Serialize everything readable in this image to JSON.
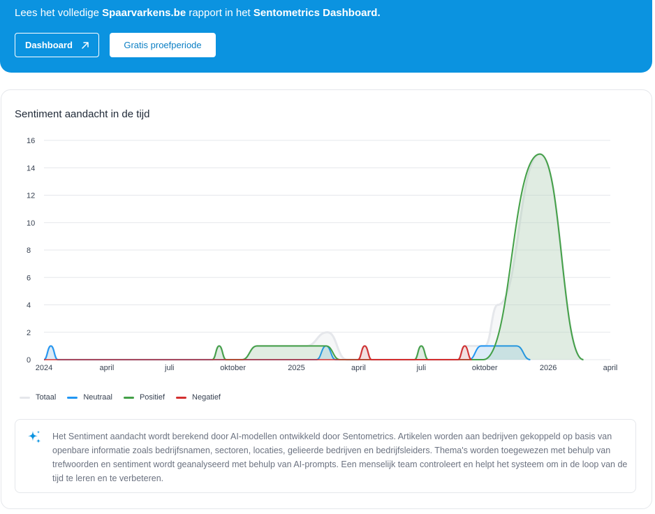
{
  "banner": {
    "text_before": "Lees het volledige ",
    "site": "Spaarvarkens.be",
    "text_middle": " rapport in het ",
    "product": "Sentometrics Dashboard.",
    "dashboard_button": "Dashboard",
    "trial_button": "Gratis proefperiode",
    "color": "#0b93e0"
  },
  "card": {
    "title": "Sentiment aandacht in de tijd"
  },
  "info": {
    "text": "Het Sentiment aandacht wordt berekend door AI-modellen ontwikkeld door Sentometrics. Artikelen worden aan bedrijven gekoppeld op basis van openbare informatie zoals bedrijfsnamen, sectoren, locaties, gelieerde bedrijven en bedrijfsleiders. Thema's worden toegewezen met behulp van trefwoorden en sentiment wordt geanalyseerd met behulp van AI-prompts. Een menselijk team controleert en helpt het systeem om in de loop van de tijd te leren en te verbeteren."
  },
  "chart_data": {
    "type": "area",
    "title": "",
    "xlabel": "",
    "ylabel": "",
    "ylim": [
      0,
      16
    ],
    "yticks": [
      0,
      2,
      4,
      6,
      8,
      10,
      12,
      14,
      16
    ],
    "xlim": [
      "2024-01-01",
      "2026-04-01"
    ],
    "xticks": [
      {
        "date": "2024-01-01",
        "label": "2024"
      },
      {
        "date": "2024-04-01",
        "label": "april"
      },
      {
        "date": "2024-07-01",
        "label": "juli"
      },
      {
        "date": "2024-10-01",
        "label": "oktober"
      },
      {
        "date": "2025-01-01",
        "label": "2025"
      },
      {
        "date": "2025-04-01",
        "label": "april"
      },
      {
        "date": "2025-07-01",
        "label": "juli"
      },
      {
        "date": "2025-10-01",
        "label": "oktober"
      },
      {
        "date": "2026-01-01",
        "label": "2026"
      },
      {
        "date": "2026-04-01",
        "label": "april"
      }
    ],
    "grid": true,
    "legend_position": "bottom-left",
    "series": [
      {
        "name": "Totaal",
        "color": "#e5e7eb",
        "points": [
          [
            "2024-01-01",
            0
          ],
          [
            "2024-01-11",
            1
          ],
          [
            "2024-01-21",
            0
          ],
          [
            "2024-09-01",
            0
          ],
          [
            "2024-09-11",
            1
          ],
          [
            "2024-09-21",
            0
          ],
          [
            "2024-10-14",
            0
          ],
          [
            "2024-11-05",
            1
          ],
          [
            "2025-01-15",
            1
          ],
          [
            "2025-02-15",
            2
          ],
          [
            "2025-03-15",
            0
          ],
          [
            "2025-03-31",
            0
          ],
          [
            "2025-04-10",
            1
          ],
          [
            "2025-04-20",
            0
          ],
          [
            "2025-06-21",
            0
          ],
          [
            "2025-07-01",
            1
          ],
          [
            "2025-07-11",
            0
          ],
          [
            "2025-08-23",
            0
          ],
          [
            "2025-09-02",
            1
          ],
          [
            "2025-09-10",
            1
          ],
          [
            "2025-10-01",
            1
          ],
          [
            "2025-10-20",
            4
          ],
          [
            "2025-12-20",
            15
          ],
          [
            "2026-02-21",
            0
          ]
        ]
      },
      {
        "name": "Neutraal",
        "color": "#2196f3",
        "points": [
          [
            "2024-01-01",
            0
          ],
          [
            "2024-01-11",
            1
          ],
          [
            "2024-01-21",
            0
          ],
          [
            "2025-01-20",
            0
          ],
          [
            "2025-01-30",
            0
          ],
          [
            "2025-02-13",
            1
          ],
          [
            "2025-02-27",
            0
          ],
          [
            "2025-09-08",
            0
          ],
          [
            "2025-09-26",
            1
          ],
          [
            "2025-10-15",
            1
          ],
          [
            "2025-11-16",
            1
          ],
          [
            "2025-12-06",
            0
          ]
        ]
      },
      {
        "name": "Positief",
        "color": "#43a047",
        "points": [
          [
            "2024-09-01",
            0
          ],
          [
            "2024-09-11",
            1
          ],
          [
            "2024-09-21",
            0
          ],
          [
            "2024-10-14",
            0
          ],
          [
            "2024-11-05",
            1
          ],
          [
            "2025-02-13",
            1
          ],
          [
            "2025-03-05",
            0
          ],
          [
            "2025-06-21",
            0
          ],
          [
            "2025-07-01",
            1
          ],
          [
            "2025-07-11",
            0
          ],
          [
            "2025-09-29",
            0
          ],
          [
            "2025-12-20",
            15
          ],
          [
            "2026-02-21",
            0
          ]
        ]
      },
      {
        "name": "Negatief",
        "color": "#d32f2f",
        "points": [
          [
            "2025-03-31",
            0
          ],
          [
            "2025-04-10",
            1
          ],
          [
            "2025-04-20",
            0
          ],
          [
            "2025-08-23",
            0
          ],
          [
            "2025-09-02",
            1
          ],
          [
            "2025-09-12",
            0
          ]
        ]
      }
    ]
  }
}
